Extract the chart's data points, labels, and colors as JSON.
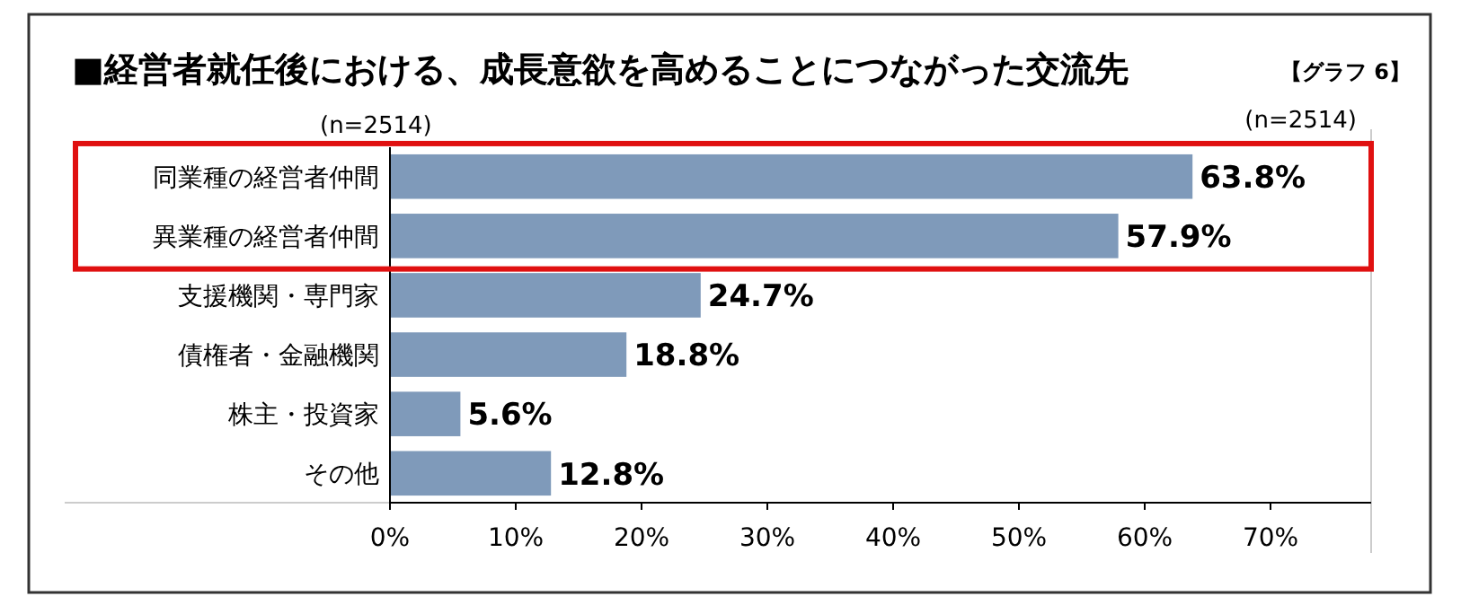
{
  "chart_data": {
    "type": "bar",
    "orientation": "horizontal",
    "title": "■経営者就任後における、成長意欲を高めることにつながった交流先",
    "categories": [
      "同業種の経営者仲間",
      "異業種の経営者仲間",
      "支援機関・専門家",
      "債権者・金融機関",
      "株主・投資家",
      "その他"
    ],
    "values": [
      63.8,
      57.9,
      24.7,
      18.8,
      5.6,
      12.8
    ],
    "color": "#7f9aba",
    "value_labels": [
      "63.8%",
      "57.9%",
      "24.7%",
      "18.8%",
      "5.6%",
      "12.8%"
    ],
    "xlim": [
      0,
      78
    ],
    "xticks": [
      {
        "value": 0,
        "label": "0%"
      },
      {
        "value": 10,
        "label": "10%"
      },
      {
        "value": 20,
        "label": "20%"
      },
      {
        "value": 30,
        "label": "30%"
      },
      {
        "value": 40,
        "label": "40%"
      },
      {
        "value": 50,
        "label": "50%"
      },
      {
        "value": 60,
        "label": "60%"
      },
      {
        "value": 70,
        "label": "70%"
      }
    ],
    "annotations": [
      "【グラフ 6】",
      "(n=2514)",
      "(n=2514)"
    ]
  }
}
